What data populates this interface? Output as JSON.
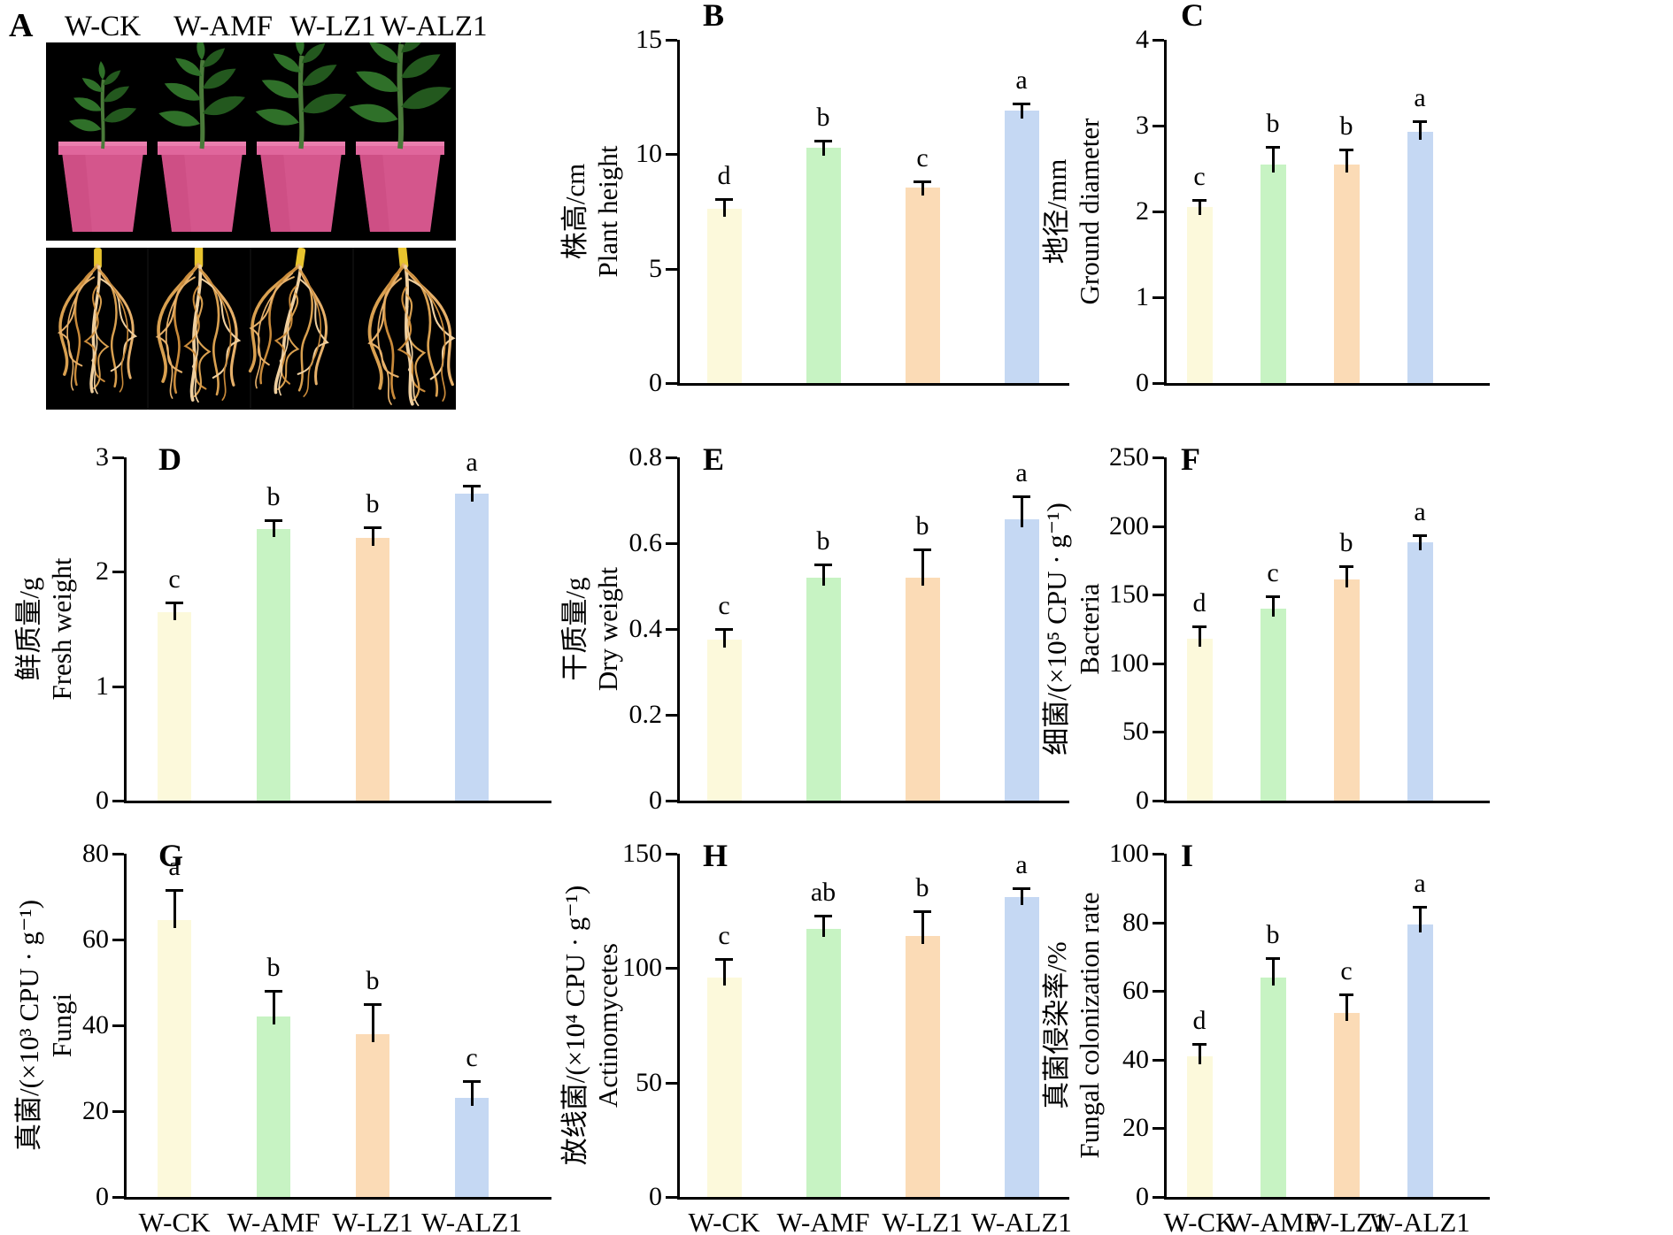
{
  "panel_a": {
    "label": "A",
    "treatments": [
      "W-CK",
      "W-AMF",
      "W-LZ1",
      "W-ALZ1"
    ]
  },
  "x_categories": [
    "W-CK",
    "W-AMF",
    "W-LZ1",
    "W-ALZ1"
  ],
  "bar_colors": [
    "#FCF9DB",
    "#C7F3C3",
    "#FBDBB6",
    "#C5D8F3"
  ],
  "chart_data": [
    {
      "panel": "B",
      "type": "bar",
      "ylabel_zh": "株高/cm",
      "ylabel_en": "Plant height",
      "categories": [
        "W-CK",
        "W-AMF",
        "W-LZ1",
        "W-ALZ1"
      ],
      "values": [
        7.6,
        10.3,
        8.55,
        11.9
      ],
      "errors": [
        0.45,
        0.3,
        0.25,
        0.3
      ],
      "sig_letters": [
        "d",
        "b",
        "c",
        "a"
      ],
      "ylim": [
        0,
        15
      ],
      "yticks": [
        0,
        5,
        10,
        15
      ],
      "show_x_labels": false
    },
    {
      "panel": "C",
      "type": "bar",
      "ylabel_zh": "地径/mm",
      "ylabel_en": "Ground diameter",
      "categories": [
        "W-CK",
        "W-AMF",
        "W-LZ1",
        "W-ALZ1"
      ],
      "values": [
        2.05,
        2.55,
        2.55,
        2.93
      ],
      "errors": [
        0.08,
        0.2,
        0.17,
        0.12
      ],
      "sig_letters": [
        "c",
        "b",
        "b",
        "a"
      ],
      "ylim": [
        0,
        4
      ],
      "yticks": [
        0,
        1,
        2,
        3,
        4
      ],
      "show_x_labels": false
    },
    {
      "panel": "D",
      "type": "bar",
      "ylabel_zh": "鲜质量/g",
      "ylabel_en": "Fresh weight",
      "categories": [
        "W-CK",
        "W-AMF",
        "W-LZ1",
        "W-ALZ1"
      ],
      "values": [
        1.65,
        2.37,
        2.3,
        2.68
      ],
      "errors": [
        0.08,
        0.08,
        0.09,
        0.07
      ],
      "sig_letters": [
        "c",
        "b",
        "b",
        "a"
      ],
      "ylim": [
        0,
        3
      ],
      "yticks": [
        0,
        1,
        2,
        3
      ],
      "show_x_labels": false
    },
    {
      "panel": "E",
      "type": "bar",
      "ylabel_zh": "干质量/g",
      "ylabel_en": "Dry weight",
      "categories": [
        "W-CK",
        "W-AMF",
        "W-LZ1",
        "W-ALZ1"
      ],
      "values": [
        0.375,
        0.52,
        0.52,
        0.655
      ],
      "errors": [
        0.025,
        0.03,
        0.065,
        0.055
      ],
      "sig_letters": [
        "c",
        "b",
        "b",
        "a"
      ],
      "ylim": [
        0,
        0.8
      ],
      "yticks": [
        0,
        0.2,
        0.4,
        0.6,
        0.8
      ],
      "show_x_labels": false
    },
    {
      "panel": "F",
      "type": "bar",
      "ylabel_zh": "细菌/(×10⁵ CPU · g⁻¹)",
      "ylabel_en": "Bacteria",
      "categories": [
        "W-CK",
        "W-AMF",
        "W-LZ1",
        "W-ALZ1"
      ],
      "values": [
        118,
        140,
        161,
        188
      ],
      "errors": [
        9,
        9,
        10,
        5
      ],
      "sig_letters": [
        "d",
        "c",
        "b",
        "a"
      ],
      "ylim": [
        0,
        250
      ],
      "yticks": [
        0,
        50,
        100,
        150,
        200,
        250
      ],
      "show_x_labels": false
    },
    {
      "panel": "G",
      "type": "bar",
      "ylabel_zh": "真菌/(×10³ CPU · g⁻¹)",
      "ylabel_en": "Fungi",
      "categories": [
        "W-CK",
        "W-AMF",
        "W-LZ1",
        "W-ALZ1"
      ],
      "values": [
        64.5,
        42,
        38,
        23
      ],
      "errors": [
        7,
        6,
        7,
        4
      ],
      "sig_letters": [
        "a",
        "b",
        "b",
        "c"
      ],
      "ylim": [
        0,
        80
      ],
      "yticks": [
        0,
        20,
        40,
        60,
        80
      ],
      "show_x_labels": true
    },
    {
      "panel": "H",
      "type": "bar",
      "ylabel_zh": "放线菌/(×10⁴ CPU · g⁻¹)",
      "ylabel_en": "Actinomycetes",
      "categories": [
        "W-CK",
        "W-AMF",
        "W-LZ1",
        "W-ALZ1"
      ],
      "values": [
        96,
        117,
        114,
        131
      ],
      "errors": [
        8,
        6,
        11,
        4
      ],
      "sig_letters": [
        "c",
        "ab",
        "b",
        "a"
      ],
      "ylim": [
        0,
        150
      ],
      "yticks": [
        0,
        50,
        100,
        150
      ],
      "show_x_labels": true
    },
    {
      "panel": "I",
      "type": "bar",
      "ylabel_zh": "真菌侵染率/%",
      "ylabel_en": "Fungal colonization rate",
      "categories": [
        "W-CK",
        "W-AMF",
        "W-LZ1",
        "W-ALZ1"
      ],
      "values": [
        41,
        64,
        53.5,
        79.5
      ],
      "errors": [
        3.5,
        5.5,
        5.5,
        5
      ],
      "sig_letters": [
        "d",
        "b",
        "c",
        "a"
      ],
      "ylim": [
        0,
        100
      ],
      "yticks": [
        0,
        20,
        40,
        60,
        80,
        100
      ],
      "show_x_labels": true
    }
  ]
}
